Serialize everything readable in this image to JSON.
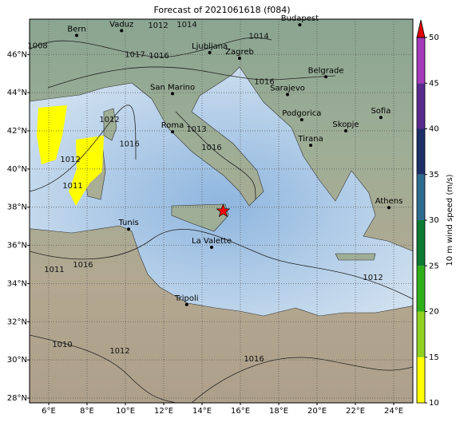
{
  "title": "Forecast of 2021061618 (f084)",
  "map": {
    "xlim": [
      5,
      25
    ],
    "ylim": [
      27.75,
      47.85
    ],
    "grid": true,
    "xticks": [
      {
        "value": 6,
        "label": "6°E"
      },
      {
        "value": 8,
        "label": "8°E"
      },
      {
        "value": 10,
        "label": "10°E"
      },
      {
        "value": 12,
        "label": "12°E"
      },
      {
        "value": 14,
        "label": "14°E"
      },
      {
        "value": 16,
        "label": "16°E"
      },
      {
        "value": 18,
        "label": "18°E"
      },
      {
        "value": 20,
        "label": "20°E"
      },
      {
        "value": 22,
        "label": "22°E"
      },
      {
        "value": 24,
        "label": "24°E"
      }
    ],
    "yticks": [
      {
        "value": 28,
        "label": "28°N"
      },
      {
        "value": 30,
        "label": "30°N"
      },
      {
        "value": 32,
        "label": "32°N"
      },
      {
        "value": 34,
        "label": "34°N"
      },
      {
        "value": 36,
        "label": "36°N"
      },
      {
        "value": 38,
        "label": "38°N"
      },
      {
        "value": 40,
        "label": "40°N"
      },
      {
        "value": 42,
        "label": "42°N"
      },
      {
        "value": 44,
        "label": "44°N"
      },
      {
        "value": 46,
        "label": "46°N"
      }
    ]
  },
  "cities": [
    {
      "name": "Budapest",
      "lon": 19.1,
      "lat": 47.55
    },
    {
      "name": "Bern",
      "lon": 7.46,
      "lat": 47.0
    },
    {
      "name": "Vaduz",
      "lon": 9.8,
      "lat": 47.25
    },
    {
      "name": "Ljubljana",
      "lon": 14.4,
      "lat": 46.1
    },
    {
      "name": "Zagreb",
      "lon": 15.96,
      "lat": 45.8
    },
    {
      "name": "San Marino",
      "lon": 12.46,
      "lat": 43.95
    },
    {
      "name": "Belgrade",
      "lon": 20.46,
      "lat": 44.83
    },
    {
      "name": "Sarajevo",
      "lon": 18.46,
      "lat": 43.9
    },
    {
      "name": "Podgorica",
      "lon": 19.2,
      "lat": 42.58
    },
    {
      "name": "Sofia",
      "lon": 23.33,
      "lat": 42.7
    },
    {
      "name": "Skopje",
      "lon": 21.5,
      "lat": 42.0
    },
    {
      "name": "Tirana",
      "lon": 19.67,
      "lat": 41.24
    },
    {
      "name": "Roma",
      "lon": 12.46,
      "lat": 41.95
    },
    {
      "name": "Athens",
      "lon": 23.75,
      "lat": 37.98
    },
    {
      "name": "Tunis",
      "lon": 10.17,
      "lat": 36.85
    },
    {
      "name": "La Valette",
      "lon": 14.5,
      "lat": 35.9
    },
    {
      "name": "Tripoli",
      "lon": 13.2,
      "lat": 32.9
    }
  ],
  "isobars": [
    {
      "label": "1008",
      "lon": 5.42,
      "lat": 46.46
    },
    {
      "label": "1012",
      "lon": 11.71,
      "lat": 47.51
    },
    {
      "label": "1014",
      "lon": 13.21,
      "lat": 47.55
    },
    {
      "label": "1014",
      "lon": 16.96,
      "lat": 46.96
    },
    {
      "label": "1017",
      "lon": 10.5,
      "lat": 46.0
    },
    {
      "label": "1016",
      "lon": 11.75,
      "lat": 45.92
    },
    {
      "label": "1016",
      "lon": 17.25,
      "lat": 44.58
    },
    {
      "label": "1012",
      "lon": 7.13,
      "lat": 40.49
    },
    {
      "label": "1011",
      "lon": 7.25,
      "lat": 39.11
    },
    {
      "label": "1016",
      "lon": 10.21,
      "lat": 41.32
    },
    {
      "label": "1013",
      "lon": 13.71,
      "lat": 42.08
    },
    {
      "label": "1016",
      "lon": 14.5,
      "lat": 41.12
    },
    {
      "label": "1016",
      "lon": 7.79,
      "lat": 34.97
    },
    {
      "label": "1011",
      "lon": 6.29,
      "lat": 34.72
    },
    {
      "label": "1012",
      "lon": 22.92,
      "lat": 34.31
    },
    {
      "label": "1010",
      "lon": 6.71,
      "lat": 30.8
    },
    {
      "label": "1012",
      "lon": 9.71,
      "lat": 30.46
    },
    {
      "label": "1016",
      "lon": 16.71,
      "lat": 30.05
    },
    {
      "label": "1012",
      "lon": 9.17,
      "lat": 42.58
    }
  ],
  "star": {
    "lon": 15.1,
    "lat": 37.8,
    "color": "#ff0000"
  },
  "colorbar": {
    "label": "10 m wind speed (m/s)",
    "lim": [
      10,
      50
    ],
    "ticks": [
      10,
      15,
      20,
      25,
      30,
      35,
      40,
      45,
      50
    ],
    "colors": [
      "#ffff00",
      "#8fd11e",
      "#2fae1a",
      "#0f7a32",
      "#2f6b8f",
      "#1c2f66",
      "#5a2a8c",
      "#a43bb8"
    ],
    "extend_color": "#e00000"
  }
}
